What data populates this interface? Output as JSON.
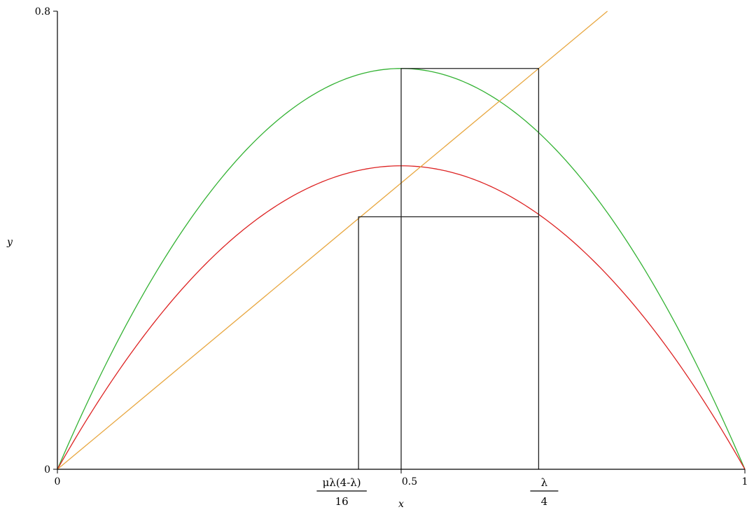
{
  "chart_data": {
    "type": "line",
    "xlabel": "x",
    "ylabel": "y",
    "xlim": [
      0,
      1
    ],
    "ylim": [
      0,
      0.8
    ],
    "x_ticks": [
      {
        "value": 0,
        "label": "0"
      },
      {
        "value": 0.5,
        "label": "0.5"
      },
      {
        "value": 1,
        "label": "1"
      }
    ],
    "y_ticks": [
      {
        "value": 0,
        "label": "0"
      },
      {
        "value": 0.8,
        "label": "0.8"
      }
    ],
    "fraction_ticks": [
      {
        "value": 0.438,
        "numerator": "μλ(4-λ)",
        "denominator": "16"
      },
      {
        "value": 0.7,
        "numerator": "λ",
        "denominator": "4"
      }
    ],
    "series": [
      {
        "kind": "parabola",
        "peak_x": 0.5,
        "peak_y": 0.7,
        "color": "#33b233"
      },
      {
        "kind": "parabola",
        "peak_x": 0.5,
        "peak_y": 0.53,
        "color": "#dd2222"
      },
      {
        "kind": "identity",
        "x": [
          0,
          0.8
        ],
        "y": [
          0,
          0.8
        ],
        "color": "#e8a740"
      }
    ],
    "guides": [
      {
        "x": [
          0.5,
          0.5,
          0.7,
          0.7
        ],
        "y": [
          0,
          0.7,
          0.7,
          0
        ],
        "color": "#222222"
      },
      {
        "x": [
          0.438,
          0.438,
          0.7
        ],
        "y": [
          0,
          0.441,
          0.441
        ],
        "color": "#222222"
      }
    ]
  }
}
